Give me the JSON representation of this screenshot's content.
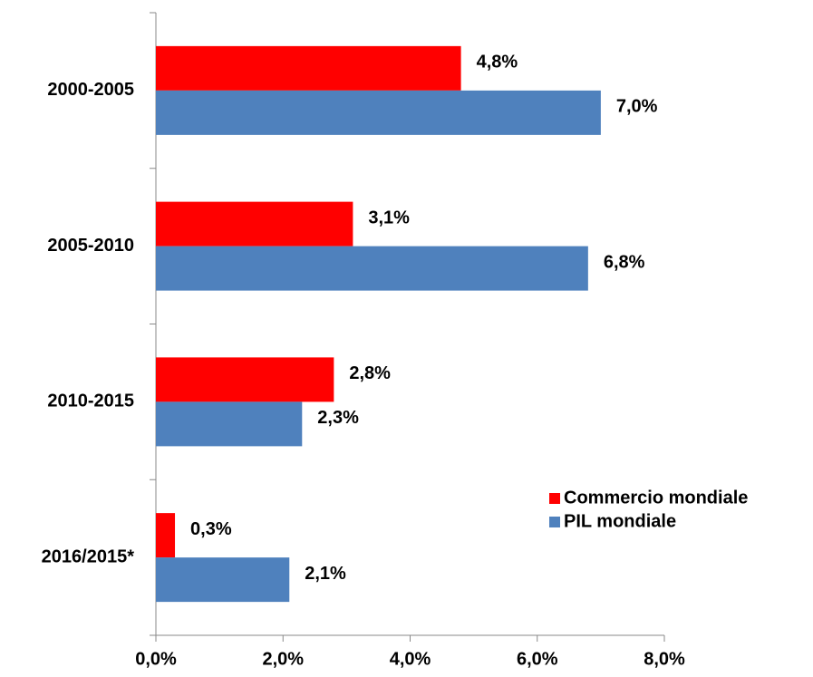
{
  "chart_data": {
    "type": "hbar",
    "categories": [
      "2000-2005",
      "2005-2010",
      "2010-2015",
      "2016/2015*"
    ],
    "series": [
      {
        "name": "Commercio mondiale",
        "color": "#ff0000",
        "values": [
          4.8,
          3.1,
          2.8,
          0.3
        ],
        "value_labels": [
          "4,8%",
          "3,1%",
          "2,8%",
          "0,3%"
        ]
      },
      {
        "name": "PIL mondiale",
        "color": "#4f81bd",
        "values": [
          7.0,
          6.8,
          2.3,
          2.1
        ],
        "value_labels": [
          "7,0%",
          "6,8%",
          "2,3%",
          "2,1%"
        ]
      }
    ],
    "xlim": [
      0,
      8
    ],
    "xticks": [
      {
        "value": 0,
        "label": "0,0%"
      },
      {
        "value": 2,
        "label": "2,0%"
      },
      {
        "value": 4,
        "label": "4,0%"
      },
      {
        "value": 6,
        "label": "6,0%"
      },
      {
        "value": 8,
        "label": "8,0%"
      }
    ],
    "grid": false,
    "legend": "right"
  }
}
